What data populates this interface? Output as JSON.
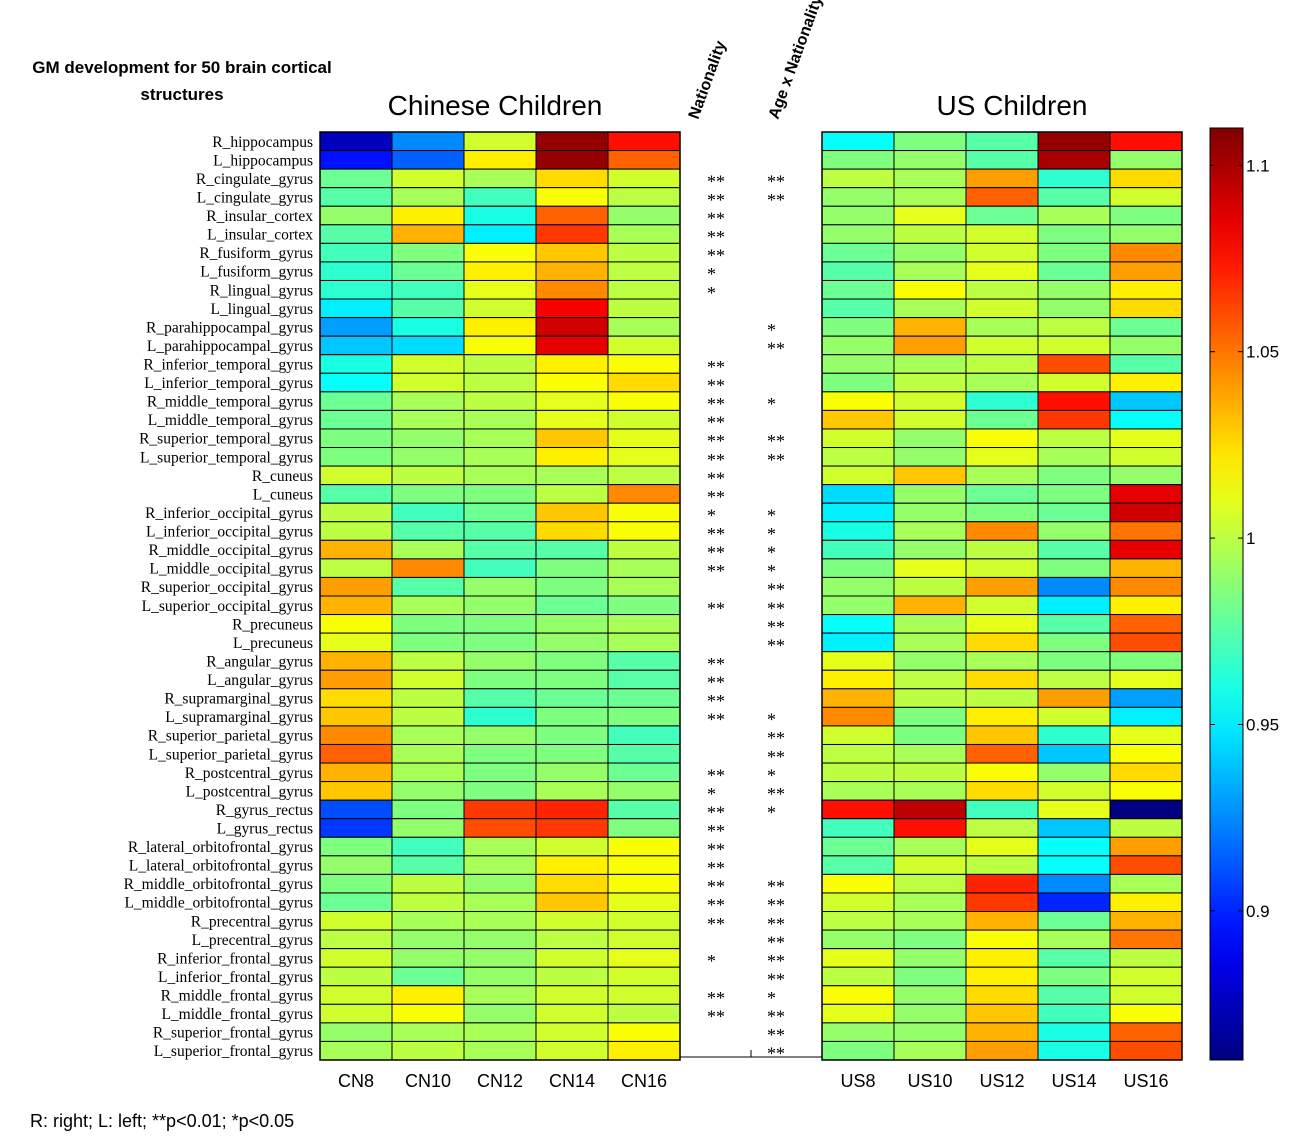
{
  "chart_data": {
    "type": "heatmap",
    "title_lines": [
      "GM development for 50 brain cortical",
      "structures"
    ],
    "left_panel_title": "Chinese Children",
    "right_panel_title": "US Children",
    "stat_column_headers": [
      "Nationality",
      "Age x Nationality"
    ],
    "cn_columns": [
      "CN8",
      "CN10",
      "CN12",
      "CN14",
      "CN16"
    ],
    "us_columns": [
      "US8",
      "US10",
      "US12",
      "US14",
      "US16"
    ],
    "rows": [
      "R_hippocampus",
      "L_hippocampus",
      "R_cingulate_gyrus",
      "L_cingulate_gyrus",
      "R_insular_cortex",
      "L_insular_cortex",
      "R_fusiform_gyrus",
      "L_fusiform_gyrus",
      "R_lingual_gyrus",
      "L_lingual_gyrus",
      "R_parahippocampal_gyrus",
      "L_parahippocampal_gyrus",
      "R_inferior_temporal_gyrus",
      "L_inferior_temporal_gyrus",
      "R_middle_temporal_gyrus",
      "L_middle_temporal_gyrus",
      "R_superior_temporal_gyrus",
      "L_superior_temporal_gyrus",
      "R_cuneus",
      "L_cuneus",
      "R_inferior_occipital_gyrus",
      "L_inferior_occipital_gyrus",
      "R_middle_occipital_gyrus",
      "L_middle_occipital_gyrus",
      "R_superior_occipital_gyrus",
      "L_superior_occipital_gyrus",
      "R_precuneus",
      "L_precuneus",
      "R_angular_gyrus",
      "L_angular_gyrus",
      "R_supramarginal_gyrus",
      "L_supramarginal_gyrus",
      "R_superior_parietal_gyrus",
      "L_superior_parietal_gyrus",
      "R_postcentral_gyrus",
      "L_postcentral_gyrus",
      "R_gyrus_rectus",
      "L_gyrus_rectus",
      "R_lateral_orbitofrontal_gyrus",
      "L_lateral_orbitofrontal_gyrus",
      "R_middle_orbitofrontal_gyrus",
      "L_middle_orbitofrontal_gyrus",
      "R_precentral_gyrus",
      "L_precentral_gyrus",
      "R_inferior_frontal_gyrus",
      "L_inferior_frontal_gyrus",
      "R_middle_frontal_gyrus",
      "L_middle_frontal_gyrus",
      "R_superior_frontal_gyrus",
      "L_superior_frontal_gyrus"
    ],
    "cn_values": [
      [
        0.875,
        0.925,
        1.005,
        1.105,
        1.075
      ],
      [
        0.895,
        0.915,
        1.02,
        1.105,
        1.055
      ],
      [
        0.98,
        1.005,
        0.995,
        1.025,
        1.005
      ],
      [
        0.975,
        0.995,
        0.97,
        1.015,
        1.0
      ],
      [
        0.99,
        1.02,
        0.96,
        1.055,
        0.99
      ],
      [
        0.975,
        1.035,
        0.95,
        1.065,
        0.995
      ],
      [
        0.97,
        0.985,
        1.015,
        1.03,
        1.0
      ],
      [
        0.965,
        0.98,
        1.02,
        1.035,
        1.0
      ],
      [
        0.965,
        0.97,
        1.01,
        1.045,
        1.0
      ],
      [
        0.95,
        0.975,
        1.005,
        1.08,
        1.0
      ],
      [
        0.93,
        0.96,
        1.02,
        1.09,
        0.995
      ],
      [
        0.94,
        0.945,
        1.015,
        1.085,
        1.005
      ],
      [
        0.96,
        1.005,
        1.0,
        1.02,
        1.015
      ],
      [
        0.955,
        1.005,
        1.0,
        1.015,
        1.025
      ],
      [
        0.98,
        0.995,
        1.0,
        1.01,
        1.015
      ],
      [
        0.98,
        0.995,
        0.995,
        1.01,
        1.005
      ],
      [
        0.985,
        0.99,
        0.995,
        1.03,
        1.01
      ],
      [
        0.985,
        0.99,
        0.995,
        1.02,
        1.01
      ],
      [
        1.005,
        1.0,
        0.995,
        0.995,
        1.0
      ],
      [
        0.975,
        0.985,
        0.985,
        1.0,
        1.045
      ],
      [
        1.0,
        0.97,
        0.98,
        1.03,
        1.015
      ],
      [
        1.0,
        0.975,
        0.975,
        1.025,
        1.015
      ],
      [
        1.035,
        0.995,
        0.975,
        0.975,
        1.0
      ],
      [
        1.0,
        1.045,
        0.97,
        0.985,
        0.995
      ],
      [
        1.04,
        0.975,
        0.99,
        0.985,
        0.995
      ],
      [
        1.035,
        0.995,
        0.99,
        0.98,
        0.985
      ],
      [
        1.015,
        0.985,
        0.985,
        0.99,
        0.995
      ],
      [
        1.01,
        0.985,
        0.985,
        0.99,
        0.995
      ],
      [
        1.035,
        1.0,
        0.99,
        0.985,
        0.975
      ],
      [
        1.04,
        1.005,
        0.985,
        0.985,
        0.975
      ],
      [
        1.025,
        1.0,
        0.975,
        0.98,
        0.98
      ],
      [
        1.03,
        1.0,
        0.965,
        0.985,
        0.985
      ],
      [
        1.045,
        0.995,
        0.99,
        0.985,
        0.97
      ],
      [
        1.055,
        0.995,
        0.985,
        0.985,
        0.975
      ],
      [
        1.035,
        0.995,
        0.985,
        0.99,
        0.98
      ],
      [
        1.03,
        0.99,
        0.985,
        0.995,
        0.99
      ],
      [
        0.91,
        0.985,
        1.065,
        1.07,
        0.975
      ],
      [
        0.905,
        0.99,
        1.06,
        1.065,
        0.985
      ],
      [
        0.985,
        0.97,
        0.995,
        1.005,
        1.015
      ],
      [
        0.99,
        0.975,
        0.995,
        1.02,
        1.015
      ],
      [
        0.985,
        1.0,
        0.99,
        1.025,
        1.015
      ],
      [
        0.98,
        1.0,
        0.995,
        1.03,
        1.01
      ],
      [
        1.005,
        0.995,
        0.995,
        1.005,
        1.005
      ],
      [
        1.0,
        0.99,
        0.99,
        1.0,
        1.005
      ],
      [
        1.005,
        0.99,
        0.99,
        1.005,
        1.01
      ],
      [
        1.0,
        0.98,
        0.99,
        1.0,
        1.005
      ],
      [
        1.005,
        1.02,
        0.995,
        1.005,
        1.005
      ],
      [
        1.005,
        1.015,
        0.99,
        1.005,
        1.0
      ],
      [
        0.99,
        0.995,
        0.995,
        1.005,
        1.015
      ],
      [
        0.995,
        1.0,
        0.995,
        1.005,
        1.02
      ]
    ],
    "us_values": [
      [
        0.955,
        0.985,
        0.975,
        1.105,
        1.075
      ],
      [
        0.985,
        0.99,
        0.975,
        1.1,
        0.99
      ],
      [
        1.0,
        0.995,
        1.04,
        0.965,
        1.025
      ],
      [
        0.99,
        0.995,
        1.055,
        0.975,
        1.005
      ],
      [
        0.99,
        1.01,
        0.98,
        0.995,
        0.985
      ],
      [
        0.99,
        1.0,
        1.005,
        0.985,
        0.99
      ],
      [
        0.98,
        0.99,
        1.005,
        0.985,
        1.045
      ],
      [
        0.975,
        0.995,
        1.01,
        0.98,
        1.04
      ],
      [
        0.98,
        1.015,
        1.0,
        0.99,
        1.02
      ],
      [
        0.975,
        0.995,
        1.005,
        0.99,
        1.025
      ],
      [
        0.985,
        1.035,
        0.995,
        1.0,
        0.98
      ],
      [
        0.99,
        1.04,
        1.005,
        1.005,
        0.99
      ],
      [
        0.99,
        0.995,
        1.0,
        1.06,
        0.975
      ],
      [
        0.985,
        1.0,
        0.995,
        1.005,
        1.02
      ],
      [
        1.015,
        1.005,
        0.965,
        1.075,
        0.94
      ],
      [
        1.03,
        1.005,
        0.98,
        1.065,
        0.955
      ],
      [
        1.005,
        0.99,
        1.015,
        1.0,
        1.01
      ],
      [
        1.0,
        0.99,
        1.01,
        0.995,
        1.005
      ],
      [
        1.005,
        1.03,
        0.995,
        0.985,
        0.99
      ],
      [
        0.945,
        0.99,
        0.98,
        0.985,
        1.085
      ],
      [
        0.95,
        0.99,
        0.985,
        0.98,
        1.09
      ],
      [
        0.96,
        0.995,
        1.045,
        0.99,
        1.05
      ],
      [
        0.97,
        0.99,
        1.0,
        0.975,
        1.085
      ],
      [
        0.985,
        1.01,
        1.005,
        0.985,
        1.035
      ],
      [
        0.99,
        1.0,
        1.04,
        0.925,
        1.045
      ],
      [
        0.99,
        1.035,
        1.005,
        0.95,
        1.02
      ],
      [
        0.955,
        0.995,
        1.01,
        0.975,
        1.055
      ],
      [
        0.95,
        0.995,
        1.025,
        0.985,
        1.06
      ],
      [
        1.01,
        0.99,
        0.995,
        0.985,
        0.985
      ],
      [
        1.02,
        1.0,
        1.025,
        1.0,
        1.01
      ],
      [
        1.035,
        1.0,
        1.0,
        1.04,
        0.93
      ],
      [
        1.045,
        0.985,
        1.02,
        1.005,
        0.95
      ],
      [
        1.005,
        0.985,
        1.03,
        0.965,
        1.01
      ],
      [
        1.0,
        0.995,
        1.055,
        0.94,
        1.015
      ],
      [
        1.0,
        1.0,
        1.015,
        0.99,
        1.025
      ],
      [
        0.995,
        0.995,
        1.025,
        1.005,
        1.015
      ],
      [
        1.075,
        1.095,
        0.97,
        1.01,
        0.86
      ],
      [
        0.97,
        1.075,
        1.0,
        0.94,
        1.0
      ],
      [
        0.98,
        0.995,
        1.01,
        0.955,
        1.04
      ],
      [
        0.975,
        1.005,
        1.0,
        0.955,
        1.06
      ],
      [
        1.015,
        1.0,
        1.07,
        0.925,
        0.995
      ],
      [
        1.005,
        0.995,
        1.065,
        0.9,
        1.02
      ],
      [
        1.0,
        0.995,
        1.035,
        0.98,
        1.035
      ],
      [
        0.99,
        0.985,
        1.015,
        0.995,
        1.05
      ],
      [
        1.01,
        0.99,
        1.02,
        0.975,
        1.0
      ],
      [
        1.0,
        0.985,
        1.02,
        0.985,
        1.005
      ],
      [
        1.015,
        0.99,
        1.025,
        0.975,
        1.005
      ],
      [
        1.01,
        0.99,
        1.03,
        0.97,
        1.015
      ],
      [
        0.99,
        0.99,
        1.035,
        0.96,
        1.055
      ],
      [
        0.985,
        0.995,
        1.04,
        0.96,
        1.06
      ]
    ],
    "nationality_sig": [
      "",
      "",
      "**",
      "**",
      "**",
      "**",
      "**",
      "*",
      "*",
      "",
      "",
      "",
      "**",
      "**",
      "**",
      "**",
      "**",
      "**",
      "**",
      "**",
      "*",
      "**",
      "**",
      "**",
      "",
      "**",
      "",
      "",
      "**",
      "**",
      "**",
      "**",
      "",
      "",
      "**",
      "*",
      "**",
      "**",
      "**",
      "**",
      "**",
      "**",
      "**",
      "",
      "*",
      "",
      "**",
      "**",
      "",
      ""
    ],
    "age_nationality_sig": [
      "",
      "",
      "**",
      "**",
      "",
      "",
      "",
      "",
      "",
      "",
      "*",
      "**",
      "",
      "",
      "*",
      "",
      "**",
      "**",
      "",
      "",
      "*",
      "*",
      "*",
      "*",
      "**",
      "**",
      "**",
      "**",
      "",
      "",
      "",
      "*",
      "**",
      "**",
      "*",
      "**",
      "*",
      "",
      "",
      "",
      "**",
      "**",
      "**",
      "**",
      "**",
      "**",
      "*",
      "**",
      "**",
      "**"
    ],
    "colorbar": {
      "min": 0.86,
      "max": 1.11,
      "ticks": [
        0.9,
        0.95,
        1.0,
        1.05,
        1.1
      ],
      "tick_labels": [
        "0.9",
        "0.95",
        "1",
        "1.05",
        "1.1"
      ],
      "colormap": "jet"
    },
    "footnote": "R: right; L: left; **p<0.01; *p<0.05"
  }
}
